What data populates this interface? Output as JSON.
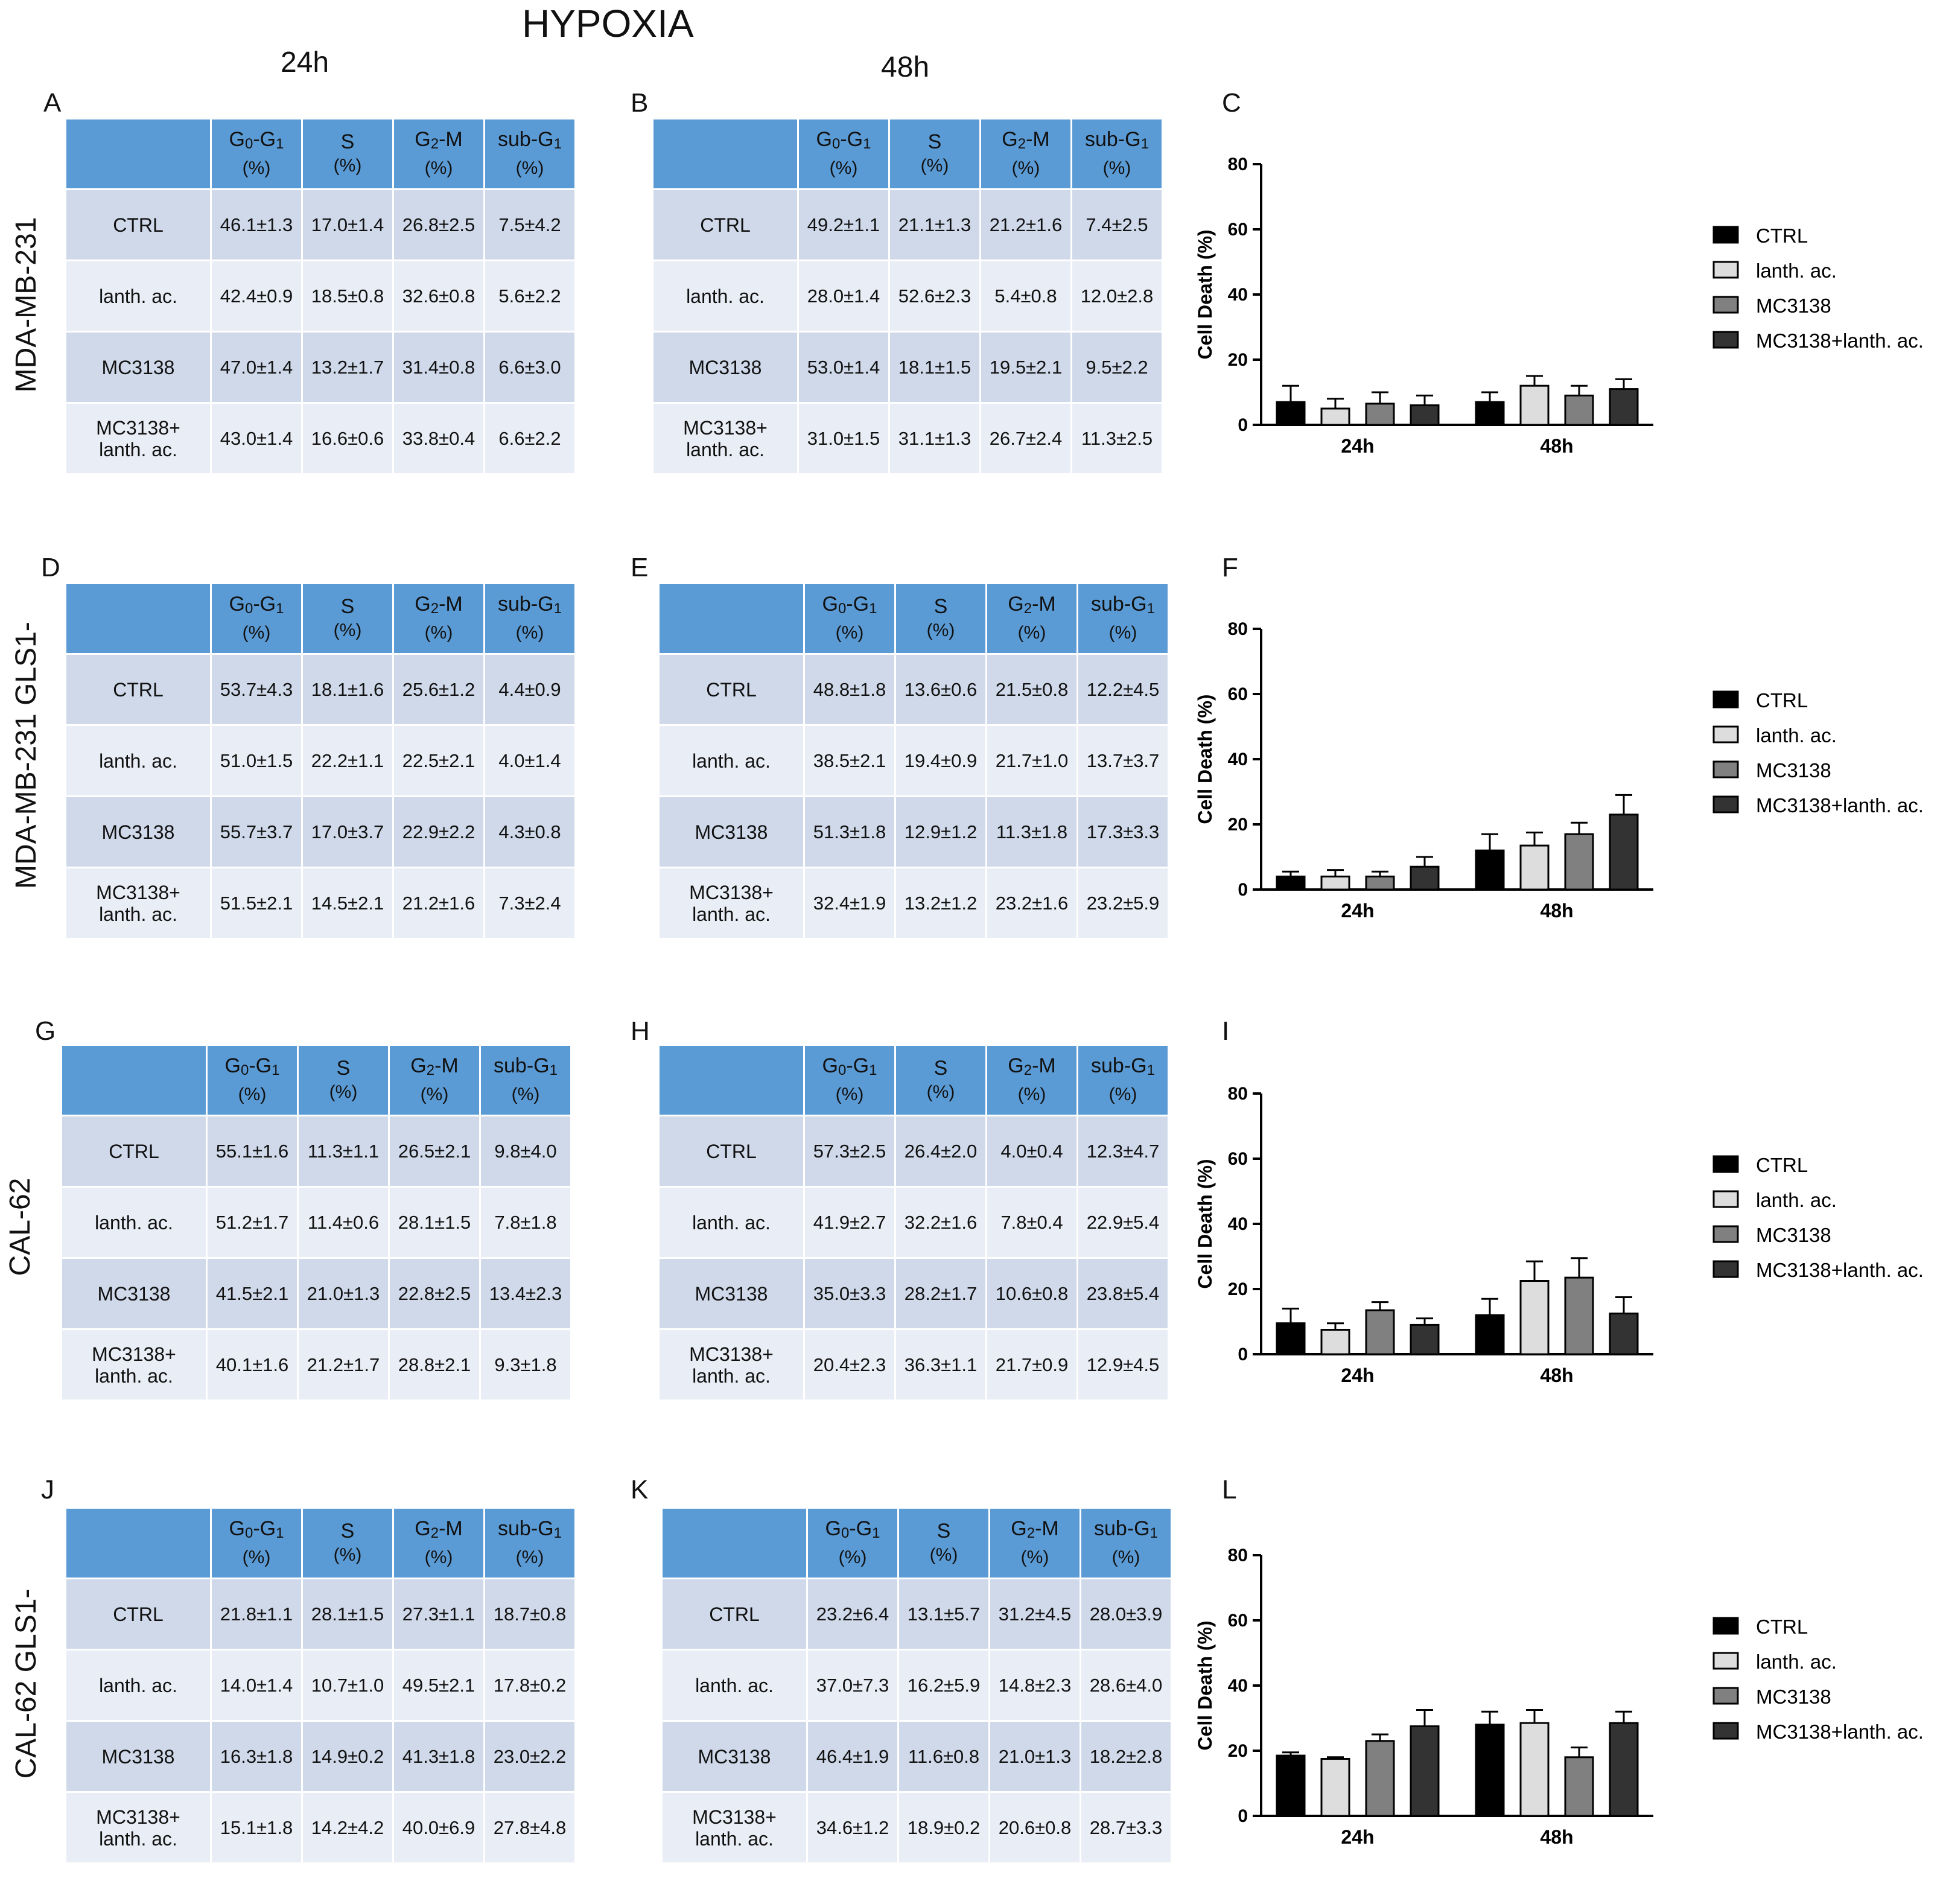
{
  "title": "HYPOXIA",
  "col_headers": [
    "24h",
    "48h"
  ],
  "row_labels": [
    "MDA-MB-231",
    "MDA-MB-231 GLS1-",
    "CAL-62",
    "CAL-62 GLS1-"
  ],
  "panel_labels": [
    "A",
    "B",
    "C",
    "D",
    "E",
    "F",
    "G",
    "H",
    "I",
    "J",
    "K",
    "L"
  ],
  "table_headers": [
    {
      "main": "G",
      "sub1": "0",
      "mid": "-G",
      "sub2": "1",
      "unit": "(%)"
    },
    {
      "main": "S",
      "sub1": "",
      "mid": "",
      "sub2": "",
      "unit": "(%)"
    },
    {
      "main": "G",
      "sub1": "2",
      "mid": "-M",
      "sub2": "",
      "unit": "(%)"
    },
    {
      "main": "sub-G",
      "sub1": "1",
      "mid": "",
      "sub2": "",
      "unit": "(%)"
    }
  ],
  "conditions": [
    "CTRL",
    "lanth. ac.",
    "MC3138",
    "MC3138+\nlanth. ac."
  ],
  "tables": [
    {
      "panel": "A",
      "rows": [
        [
          "46.1±1.3",
          "17.0±1.4",
          "26.8±2.5",
          "7.5±4.2"
        ],
        [
          "42.4±0.9",
          "18.5±0.8",
          "32.6±0.8",
          "5.6±2.2"
        ],
        [
          "47.0±1.4",
          "13.2±1.7",
          "31.4±0.8",
          "6.6±3.0"
        ],
        [
          "43.0±1.4",
          "16.6±0.6",
          "33.8±0.4",
          "6.6±2.2"
        ]
      ]
    },
    {
      "panel": "B",
      "rows": [
        [
          "49.2±1.1",
          "21.1±1.3",
          "21.2±1.6",
          "7.4±2.5"
        ],
        [
          "28.0±1.4",
          "52.6±2.3",
          "5.4±0.8",
          "12.0±2.8"
        ],
        [
          "53.0±1.4",
          "18.1±1.5",
          "19.5±2.1",
          "9.5±2.2"
        ],
        [
          "31.0±1.5",
          "31.1±1.3",
          "26.7±2.4",
          "11.3±2.5"
        ]
      ]
    },
    {
      "panel": "D",
      "rows": [
        [
          "53.7±4.3",
          "18.1±1.6",
          "25.6±1.2",
          "4.4±0.9"
        ],
        [
          "51.0±1.5",
          "22.2±1.1",
          "22.5±2.1",
          "4.0±1.4"
        ],
        [
          "55.7±3.7",
          "17.0±3.7",
          "22.9±2.2",
          "4.3±0.8"
        ],
        [
          "51.5±2.1",
          "14.5±2.1",
          "21.2±1.6",
          "7.3±2.4"
        ]
      ]
    },
    {
      "panel": "E",
      "rows": [
        [
          "48.8±1.8",
          "13.6±0.6",
          "21.5±0.8",
          "12.2±4.5"
        ],
        [
          "38.5±2.1",
          "19.4±0.9",
          "21.7±1.0",
          "13.7±3.7"
        ],
        [
          "51.3±1.8",
          "12.9±1.2",
          "11.3±1.8",
          "17.3±3.3"
        ],
        [
          "32.4±1.9",
          "13.2±1.2",
          "23.2±1.6",
          "23.2±5.9"
        ]
      ]
    },
    {
      "panel": "G",
      "rows": [
        [
          "55.1±1.6",
          "11.3±1.1",
          "26.5±2.1",
          "9.8±4.0"
        ],
        [
          "51.2±1.7",
          "11.4±0.6",
          "28.1±1.5",
          "7.8±1.8"
        ],
        [
          "41.5±2.1",
          "21.0±1.3",
          "22.8±2.5",
          "13.4±2.3"
        ],
        [
          "40.1±1.6",
          "21.2±1.7",
          "28.8±2.1",
          "9.3±1.8"
        ]
      ]
    },
    {
      "panel": "H",
      "rows": [
        [
          "57.3±2.5",
          "26.4±2.0",
          "4.0±0.4",
          "12.3±4.7"
        ],
        [
          "41.9±2.7",
          "32.2±1.6",
          "7.8±0.4",
          "22.9±5.4"
        ],
        [
          "35.0±3.3",
          "28.2±1.7",
          "10.6±0.8",
          "23.8±5.4"
        ],
        [
          "20.4±2.3",
          "36.3±1.1",
          "21.7±0.9",
          "12.9±4.5"
        ]
      ]
    },
    {
      "panel": "J",
      "rows": [
        [
          "21.8±1.1",
          "28.1±1.5",
          "27.3±1.1",
          "18.7±0.8"
        ],
        [
          "14.0±1.4",
          "10.7±1.0",
          "49.5±2.1",
          "17.8±0.2"
        ],
        [
          "16.3±1.8",
          "14.9±0.2",
          "41.3±1.8",
          "23.0±2.2"
        ],
        [
          "15.1±1.8",
          "14.2±4.2",
          "40.0±6.9",
          "27.8±4.8"
        ]
      ]
    },
    {
      "panel": "K",
      "rows": [
        [
          "23.2±6.4",
          "13.1±5.7",
          "31.2±4.5",
          "28.0±3.9"
        ],
        [
          "37.0±7.3",
          "16.2±5.9",
          "14.8±2.3",
          "28.6±4.0"
        ],
        [
          "46.4±1.9",
          "11.6±0.8",
          "21.0±1.3",
          "18.2±2.8"
        ],
        [
          "34.6±1.2",
          "18.9±0.2",
          "20.6±0.8",
          "28.7±3.3"
        ]
      ]
    }
  ],
  "chart_data": [
    {
      "panel": "C",
      "type": "bar",
      "ylabel": "Cell Death (%)",
      "ylim": [
        0,
        80
      ],
      "yticks": [
        "0",
        "20",
        "40",
        "60",
        "80"
      ],
      "categories": [
        "24h",
        "48h"
      ],
      "series": [
        {
          "name": "CTRL",
          "color": "#000000",
          "values": [
            7,
            7
          ],
          "errors": [
            5,
            3
          ]
        },
        {
          "name": "lanth. ac.",
          "color": "#dddddd",
          "values": [
            5,
            12
          ],
          "errors": [
            3,
            3
          ]
        },
        {
          "name": "MC3138",
          "color": "#808080",
          "values": [
            6.5,
            9
          ],
          "errors": [
            3.5,
            3
          ]
        },
        {
          "name": "MC3138+lanth. ac.",
          "color": "#333333",
          "values": [
            6,
            11
          ],
          "errors": [
            3,
            3
          ]
        }
      ]
    },
    {
      "panel": "F",
      "type": "bar",
      "ylabel": "Cell Death (%)",
      "ylim": [
        0,
        80
      ],
      "yticks": [
        "0",
        "20",
        "40",
        "60",
        "80"
      ],
      "categories": [
        "24h",
        "48h"
      ],
      "series": [
        {
          "name": "CTRL",
          "color": "#000000",
          "values": [
            4,
            12
          ],
          "errors": [
            1.5,
            5
          ]
        },
        {
          "name": "lanth. ac.",
          "color": "#dddddd",
          "values": [
            4,
            13.5
          ],
          "errors": [
            2,
            4
          ]
        },
        {
          "name": "MC3138",
          "color": "#808080",
          "values": [
            4,
            17
          ],
          "errors": [
            1.5,
            3.5
          ]
        },
        {
          "name": "MC3138+lanth. ac.",
          "color": "#333333",
          "values": [
            7,
            23
          ],
          "errors": [
            3,
            6
          ]
        }
      ]
    },
    {
      "panel": "I",
      "type": "bar",
      "ylabel": "Cell Death (%)",
      "ylim": [
        0,
        80
      ],
      "yticks": [
        "0",
        "20",
        "40",
        "60",
        "80"
      ],
      "categories": [
        "24h",
        "48h"
      ],
      "series": [
        {
          "name": "CTRL",
          "color": "#000000",
          "values": [
            9.5,
            12
          ],
          "errors": [
            4.5,
            5
          ]
        },
        {
          "name": "lanth. ac.",
          "color": "#dddddd",
          "values": [
            7.5,
            22.5
          ],
          "errors": [
            2,
            6
          ]
        },
        {
          "name": "MC3138",
          "color": "#808080",
          "values": [
            13.5,
            23.5
          ],
          "errors": [
            2.5,
            6
          ]
        },
        {
          "name": "MC3138+lanth. ac.",
          "color": "#333333",
          "values": [
            9,
            12.5
          ],
          "errors": [
            2,
            5
          ]
        }
      ]
    },
    {
      "panel": "L",
      "type": "bar",
      "ylabel": "Cell Death (%)",
      "ylim": [
        0,
        80
      ],
      "yticks": [
        "0",
        "20",
        "40",
        "60",
        "80"
      ],
      "categories": [
        "24h",
        "48h"
      ],
      "series": [
        {
          "name": "CTRL",
          "color": "#000000",
          "values": [
            18.5,
            28
          ],
          "errors": [
            1,
            4
          ]
        },
        {
          "name": "lanth. ac.",
          "color": "#dddddd",
          "values": [
            17.5,
            28.5
          ],
          "errors": [
            0.5,
            4
          ]
        },
        {
          "name": "MC3138",
          "color": "#808080",
          "values": [
            23,
            18
          ],
          "errors": [
            2,
            3
          ]
        },
        {
          "name": "MC3138+lanth. ac.",
          "color": "#333333",
          "values": [
            27.5,
            28.5
          ],
          "errors": [
            5,
            3.5
          ]
        }
      ]
    }
  ]
}
